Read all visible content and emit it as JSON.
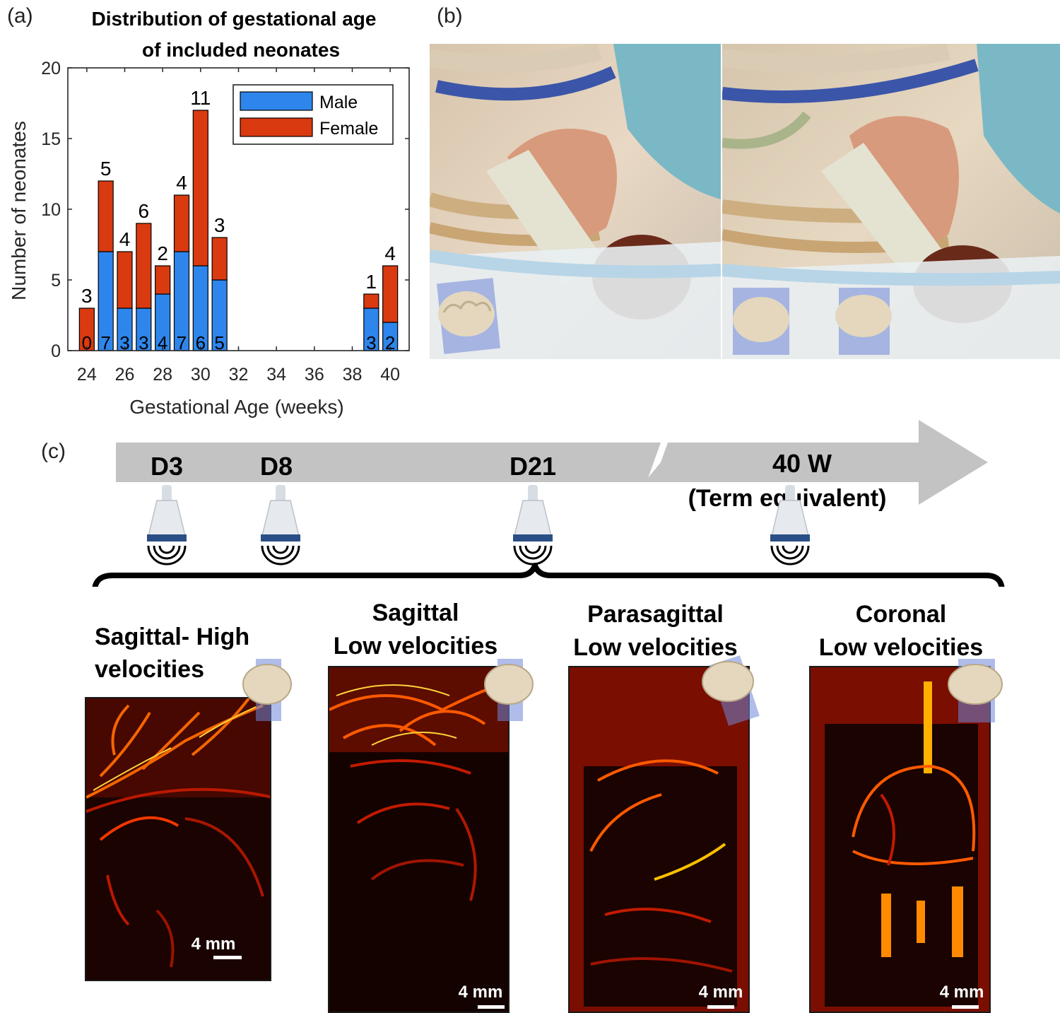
{
  "panel_labels": {
    "a": "(a)",
    "b": "(b)",
    "c": "(c)"
  },
  "chart_data": {
    "type": "bar",
    "stacked": true,
    "title": "Distribution of gestational age of included neonates",
    "title_lines": [
      "Distribution of gestational age",
      "of included neonates"
    ],
    "xlabel": "Gestational Age (weeks)",
    "ylabel": "Number of neonates",
    "xlim": [
      23,
      41
    ],
    "ylim": [
      0,
      20
    ],
    "xticks": [
      24,
      26,
      28,
      30,
      32,
      34,
      36,
      38,
      40
    ],
    "yticks": [
      0,
      5,
      10,
      15,
      20
    ],
    "categories": [
      24,
      25,
      26,
      27,
      28,
      29,
      30,
      31,
      39,
      40
    ],
    "series": [
      {
        "name": "Male",
        "color": "#2e86ec",
        "values": [
          0,
          7,
          3,
          3,
          4,
          7,
          6,
          5,
          3,
          2
        ]
      },
      {
        "name": "Female",
        "color": "#d93a10",
        "values": [
          3,
          5,
          4,
          6,
          2,
          4,
          11,
          3,
          1,
          4
        ]
      }
    ],
    "legend": "top-right",
    "grid": false
  },
  "timeline": {
    "points": [
      "D3",
      "D8",
      "D21",
      "40 W"
    ],
    "term_note": "(Term equivalent)"
  },
  "views": [
    {
      "title_lines": [
        "Sagittal- High",
        "velocities"
      ],
      "scale": "4 mm"
    },
    {
      "title_lines": [
        "Sagittal",
        "Low velocities"
      ],
      "scale": "4 mm"
    },
    {
      "title_lines": [
        "Parasagittal",
        "Low velocities"
      ],
      "scale": "4 mm"
    },
    {
      "title_lines": [
        "Coronal",
        "Low velocities"
      ],
      "scale": "4 mm"
    }
  ],
  "colors": {
    "bar_male": "#2e86ec",
    "bar_female": "#d93a10",
    "timeline_arrow": "#c3c3c3",
    "image_hot": "#ff3a00"
  }
}
